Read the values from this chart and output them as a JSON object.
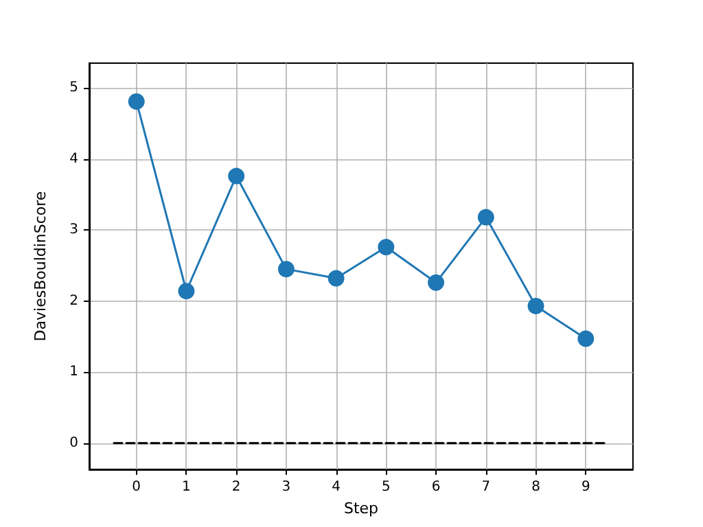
{
  "chart_data": {
    "type": "line",
    "xlabel": "Step",
    "ylabel": "DaviesBouldinScore",
    "xlim": [
      -0.945,
      9.945
    ],
    "xticks": [
      0,
      1,
      2,
      3,
      4,
      5,
      6,
      7,
      8,
      9
    ],
    "ylim": [
      -0.37,
      5.35
    ],
    "yticks": [
      0,
      1,
      2,
      3,
      4,
      5
    ],
    "grid": true,
    "series": [
      {
        "x": [
          0,
          1,
          2,
          3,
          4,
          5,
          6,
          7,
          8,
          9
        ],
        "values": [
          4.81,
          2.14,
          3.76,
          2.45,
          2.32,
          2.76,
          2.26,
          3.18,
          1.93,
          1.47
        ],
        "color": "#1f77b4",
        "marker": "circle",
        "line_style": "solid"
      },
      {
        "x": [
          -0.45,
          9.45
        ],
        "values": [
          0,
          0
        ],
        "color": "#000000",
        "marker": "none",
        "line_style": "dashed"
      }
    ]
  }
}
